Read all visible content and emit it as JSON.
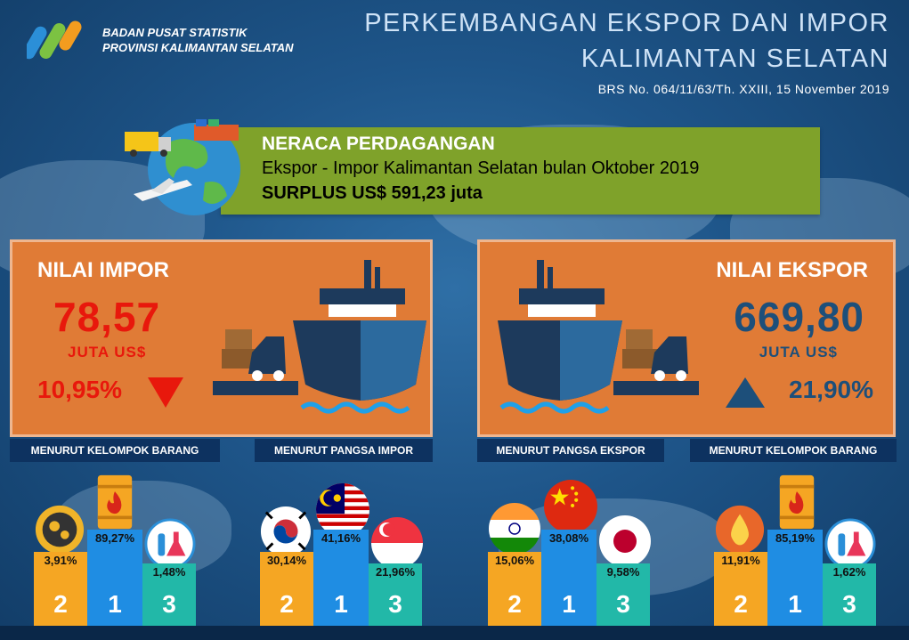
{
  "header": {
    "org_line1": "BADAN PUSAT STATISTIK",
    "org_line2": "PROVINSI KALIMANTAN SELATAN",
    "title_line1": "PERKEMBANGAN EKSPOR DAN IMPOR",
    "title_line2": "KALIMANTAN SELATAN",
    "brs": "BRS No. 064/11/63/Th. XXIII, 15 November 2019"
  },
  "balance": {
    "title": "NERACA PERDAGANGAN",
    "subtitle": "Ekspor - Impor Kalimantan Selatan bulan Oktober 2019",
    "surplus": "SURPLUS US$ 591,23 juta"
  },
  "impor": {
    "title": "NILAI IMPOR",
    "value": "78,57",
    "unit": "JUTA US$",
    "change": "10,95%",
    "direction": "down"
  },
  "ekspor": {
    "title": "NILAI EKSPOR",
    "value": "669,80",
    "unit": "JUTA US$",
    "change": "21,90%",
    "direction": "up"
  },
  "tags": {
    "impor_barang": "MENURUT KELOMPOK BARANG",
    "impor_pangsa": "MENURUT PANGSA IMPOR",
    "ekspor_pangsa": "MENURUT PANGSA EKSPOR",
    "ekspor_barang": "MENURUT KELOMPOK BARANG"
  },
  "podiums": {
    "impor_barang": {
      "first": "89,27%",
      "second": "3,91%",
      "third": "1,48%",
      "icons": [
        "fuel-barrel-icon",
        "gears-icon",
        "chemical-flask-icon"
      ]
    },
    "impor_pangsa": {
      "first": "41,16%",
      "second": "30,14%",
      "third": "21,96%",
      "icons": [
        "malaysia-flag-icon",
        "south-korea-flag-icon",
        "singapore-flag-icon"
      ]
    },
    "ekspor_pangsa": {
      "first": "38,08%",
      "second": "15,06%",
      "third": "9,58%",
      "icons": [
        "china-flag-icon",
        "india-flag-icon",
        "japan-flag-icon"
      ]
    },
    "ekspor_barang": {
      "first": "85,19%",
      "second": "11,91%",
      "third": "1,62%",
      "icons": [
        "fuel-barrel-icon",
        "oil-drop-icon",
        "chemical-flask-icon"
      ]
    },
    "ranks": {
      "first": "1",
      "second": "2",
      "third": "3"
    }
  },
  "colors": {
    "background": "#1e5589",
    "panel": "#e07b36",
    "balance_banner": "#7fa22a",
    "impor_value": "#e8180c",
    "ekspor_value": "#1d4f7a",
    "rank1": "#1f8de3",
    "rank2": "#f5a623",
    "rank3": "#22b8a8"
  }
}
